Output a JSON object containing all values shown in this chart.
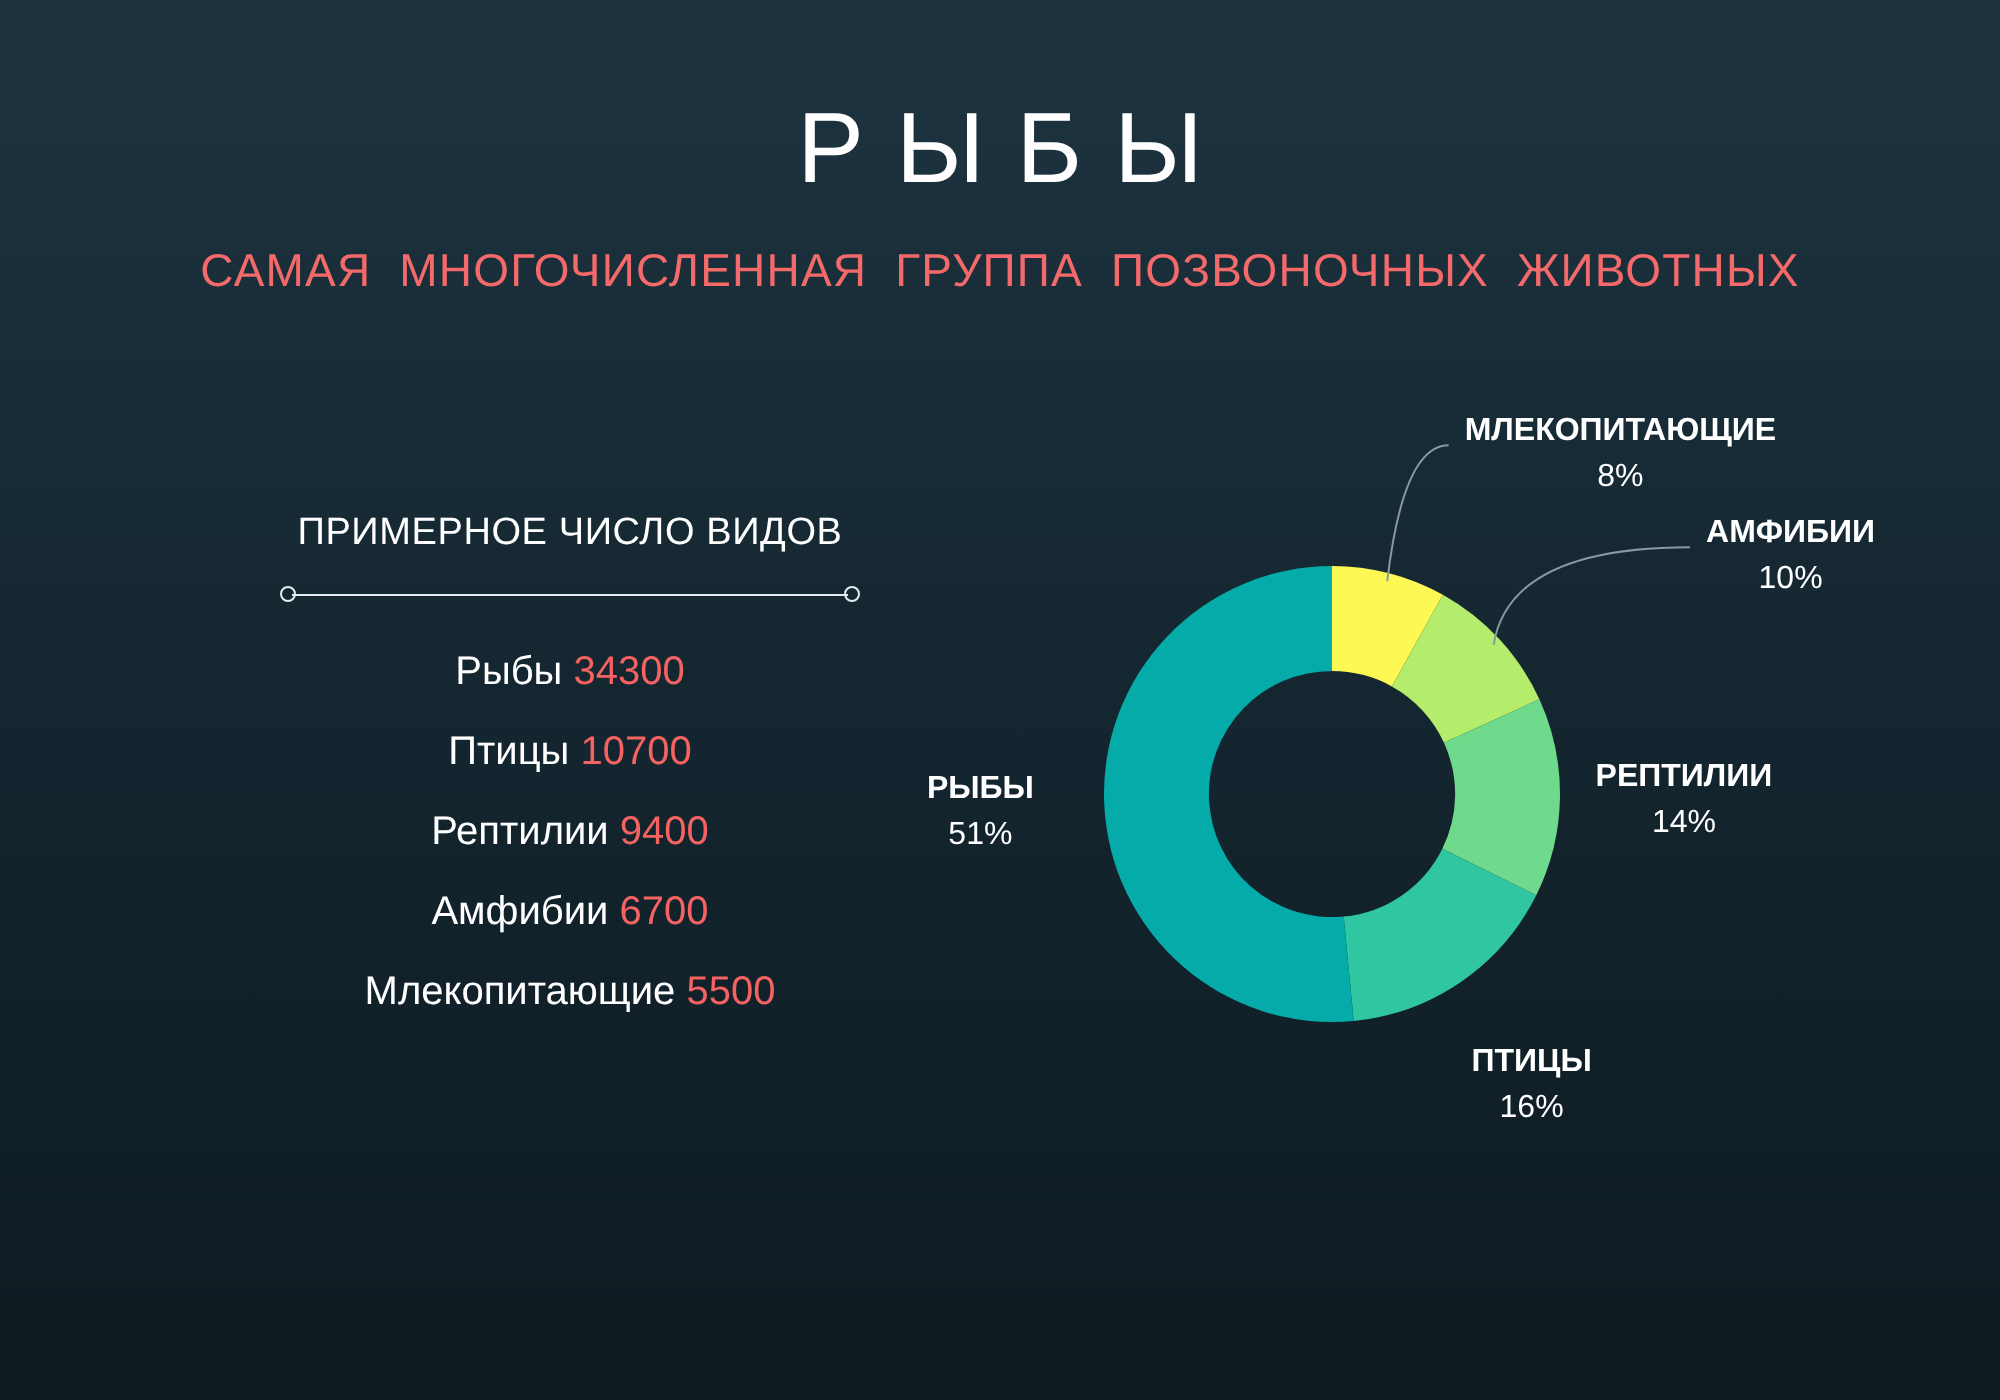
{
  "chart_data": [
    {
      "type": "donut",
      "title": "РЫБЫ",
      "subtitle": "САМАЯ  МНОГОЧИСЛЕННАЯ  ГРУППА  ПОЗВОНОЧНЫХ  ЖИВОТНЫХ",
      "categories": [
        "МЛЕКОПИТАЮЩИЕ",
        "АМФИБИИ",
        "РЕПТИЛИИ",
        "ПТИЦЫ",
        "РЫБЫ"
      ],
      "values": [
        8,
        10,
        14,
        16,
        51
      ],
      "value_labels": [
        "8%",
        "10%",
        "14%",
        "16%",
        "51%"
      ],
      "colors": [
        "#fdf853",
        "#b4ec6c",
        "#6fda8b",
        "#2fc6a1",
        "#04aba9"
      ],
      "legend": false
    },
    {
      "type": "other",
      "title": "ПРИМЕРНОЕ ЧИСЛО ВИДОВ",
      "categories": [
        "Рыбы",
        "Птицы",
        "Рептилии",
        "Амфибии",
        "Млекопитающие"
      ],
      "values": [
        34300,
        10700,
        9400,
        6700,
        5500
      ],
      "color": "#f46262",
      "data_labels": true
    }
  ]
}
